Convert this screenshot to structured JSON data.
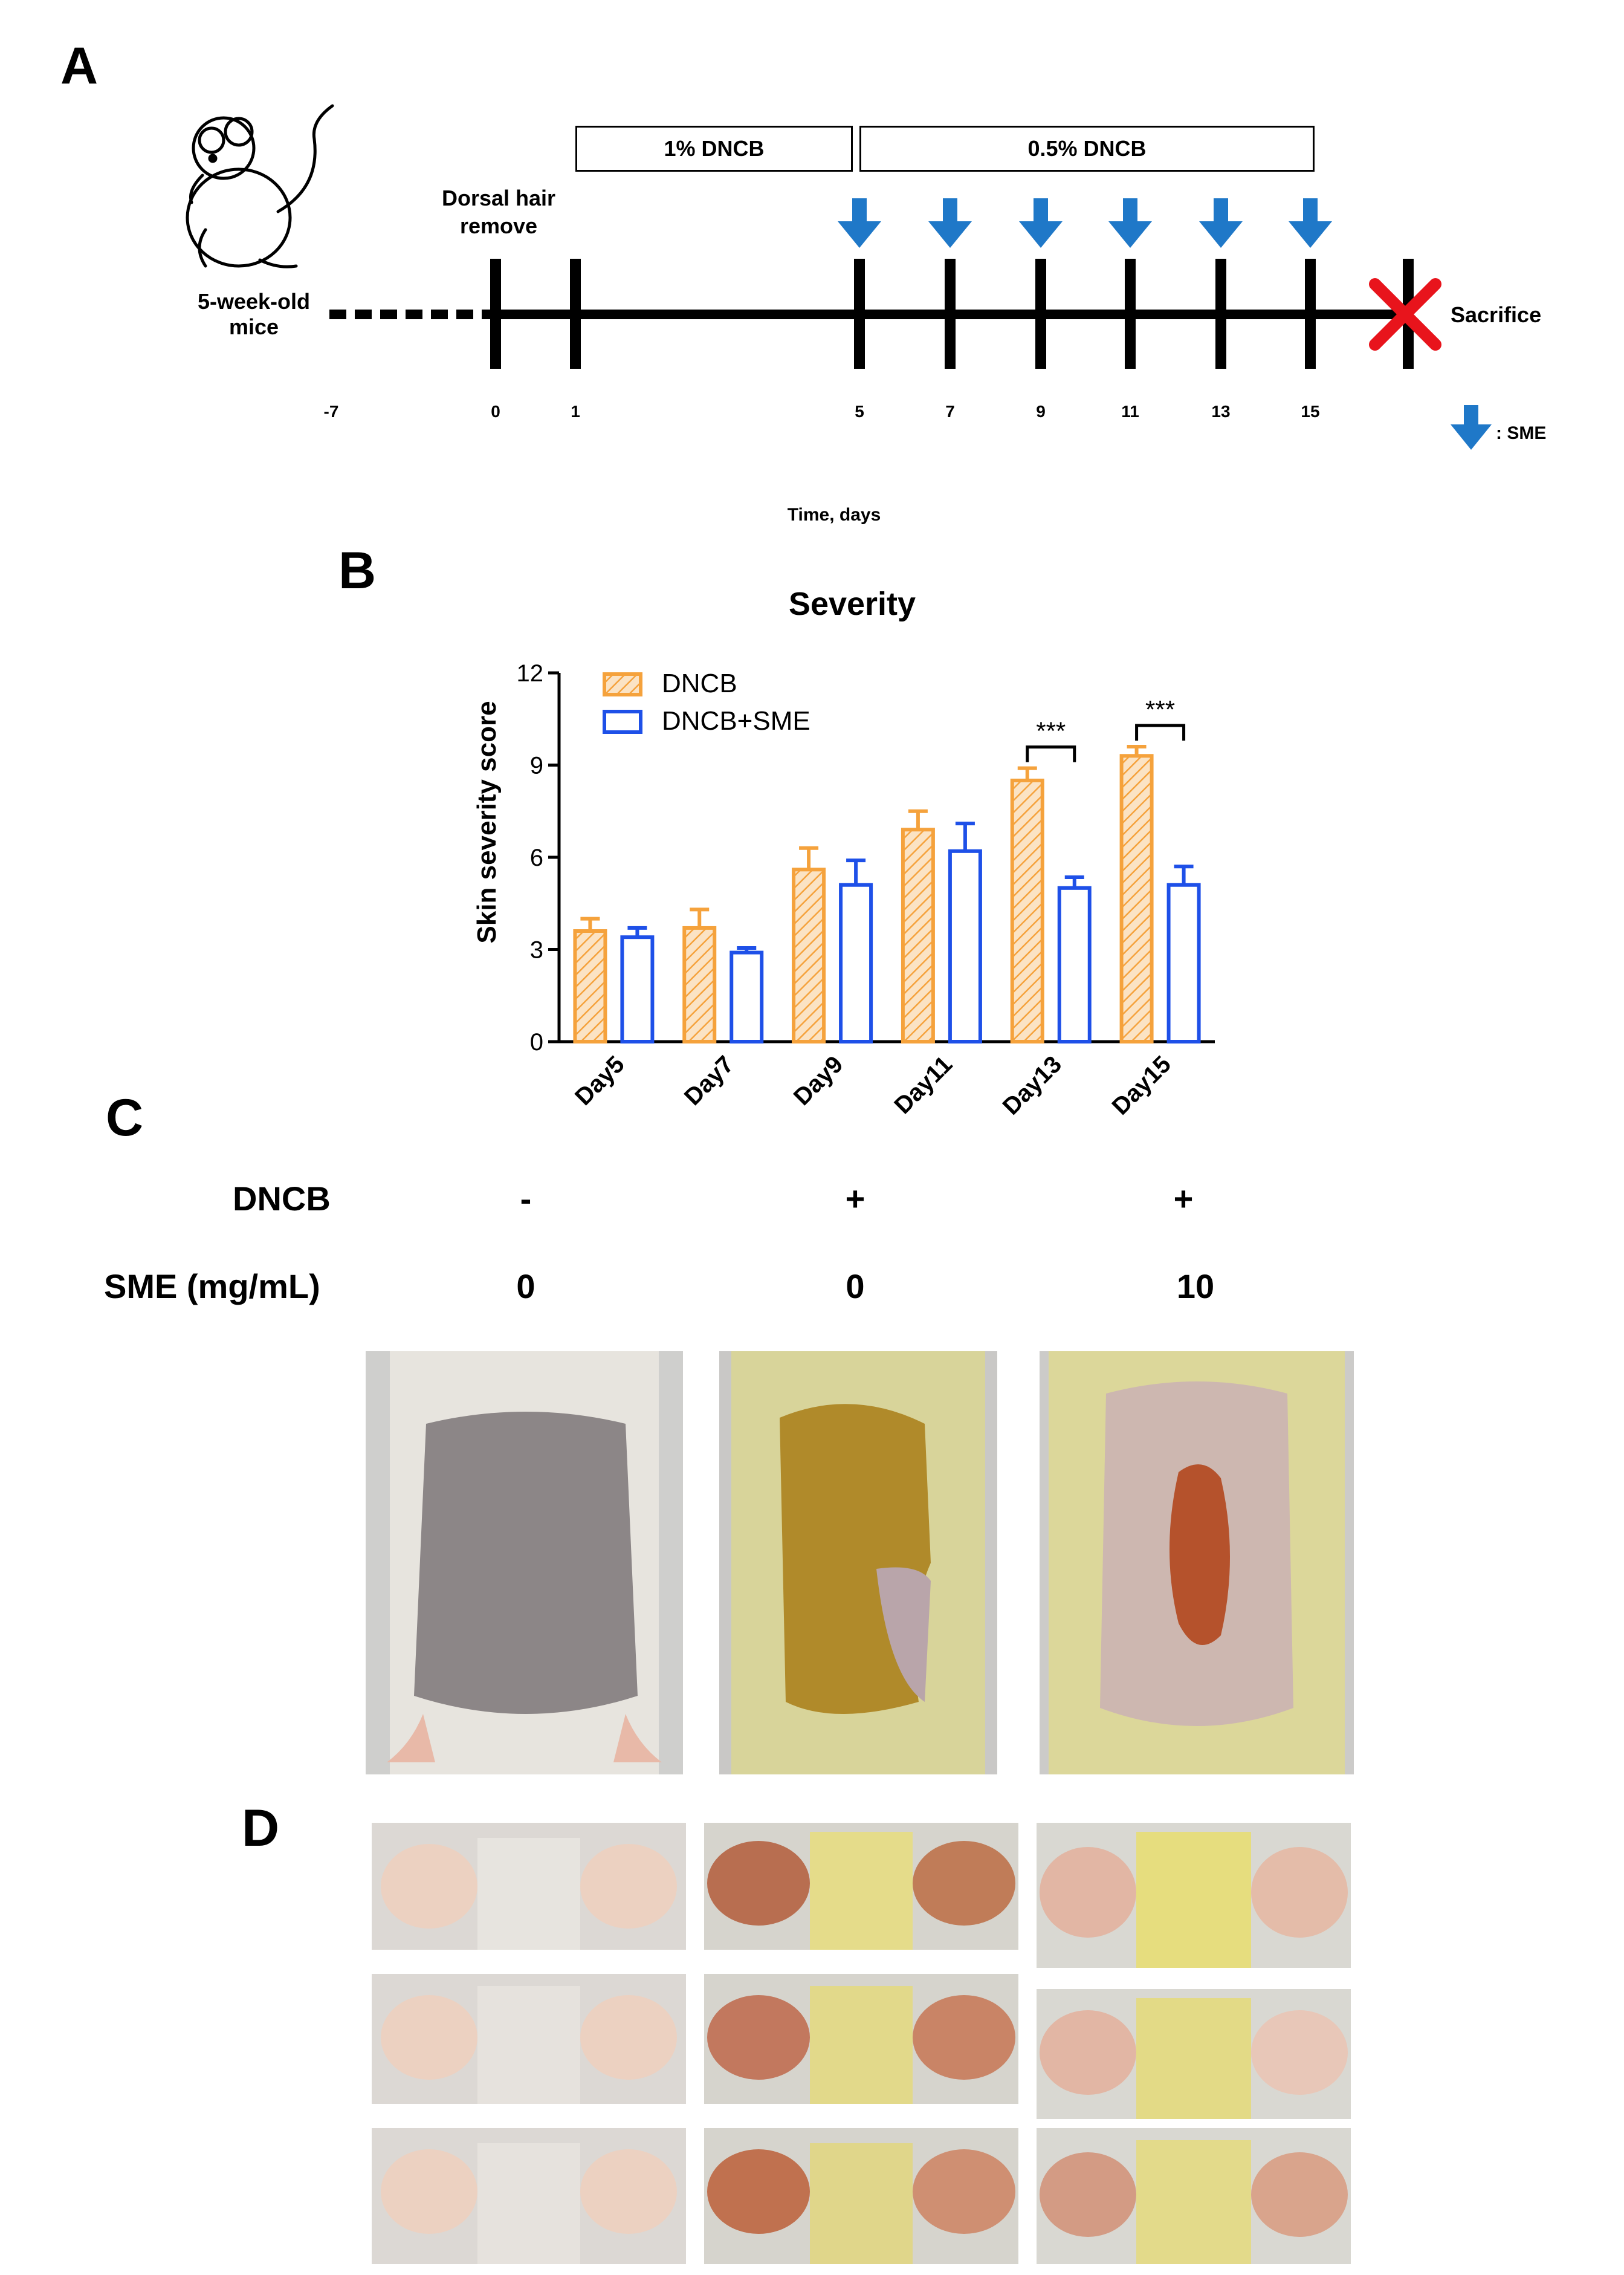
{
  "panels": {
    "a": "A",
    "b": "B",
    "c": "C",
    "d": "D"
  },
  "timeline": {
    "start_label": "5-week-old\nmice",
    "hair_label": "Dorsal hair\nremove",
    "box_1pct": "1% DNCB",
    "box_05pct": "0.5% DNCB",
    "end_label": "Sacrifice",
    "ticks": [
      "-7",
      "0",
      "1",
      "5",
      "7",
      "9",
      "11",
      "13",
      "15"
    ],
    "legend": ": SME",
    "xlabel": "Time, days",
    "arrow_color": "#1f78c8",
    "cross_color": "#e8141c"
  },
  "chart_data": {
    "type": "bar",
    "title": "Severity",
    "ylabel": "Skin severity score",
    "xlabel": "",
    "categories": [
      "Day5",
      "Day7",
      "Day9",
      "Day11",
      "Day13",
      "Day15"
    ],
    "ylim": [
      0,
      12
    ],
    "yticks": [
      0,
      3,
      6,
      9,
      12
    ],
    "series": [
      {
        "name": "DNCB",
        "color": "#f5a23c",
        "values": [
          3.6,
          3.7,
          5.6,
          6.9,
          8.5,
          9.3
        ],
        "errors": [
          0.4,
          0.6,
          0.7,
          0.6,
          0.4,
          0.3
        ]
      },
      {
        "name": "DNCB+SME",
        "color": "#1e50e8",
        "values": [
          3.4,
          2.9,
          5.1,
          6.2,
          5.0,
          5.1
        ],
        "errors": [
          0.3,
          0.15,
          0.8,
          0.9,
          0.35,
          0.6
        ]
      }
    ],
    "annotations": [
      {
        "category": "Day13",
        "text": "***"
      },
      {
        "category": "Day15",
        "text": "***"
      }
    ]
  },
  "panel_c": {
    "row1_label": "DNCB",
    "row2_label": "SME (mg/mL)",
    "columns": [
      {
        "dncb": "-",
        "sme": "0"
      },
      {
        "dncb": "+",
        "sme": "0"
      },
      {
        "dncb": "+",
        "sme": "10"
      }
    ]
  }
}
